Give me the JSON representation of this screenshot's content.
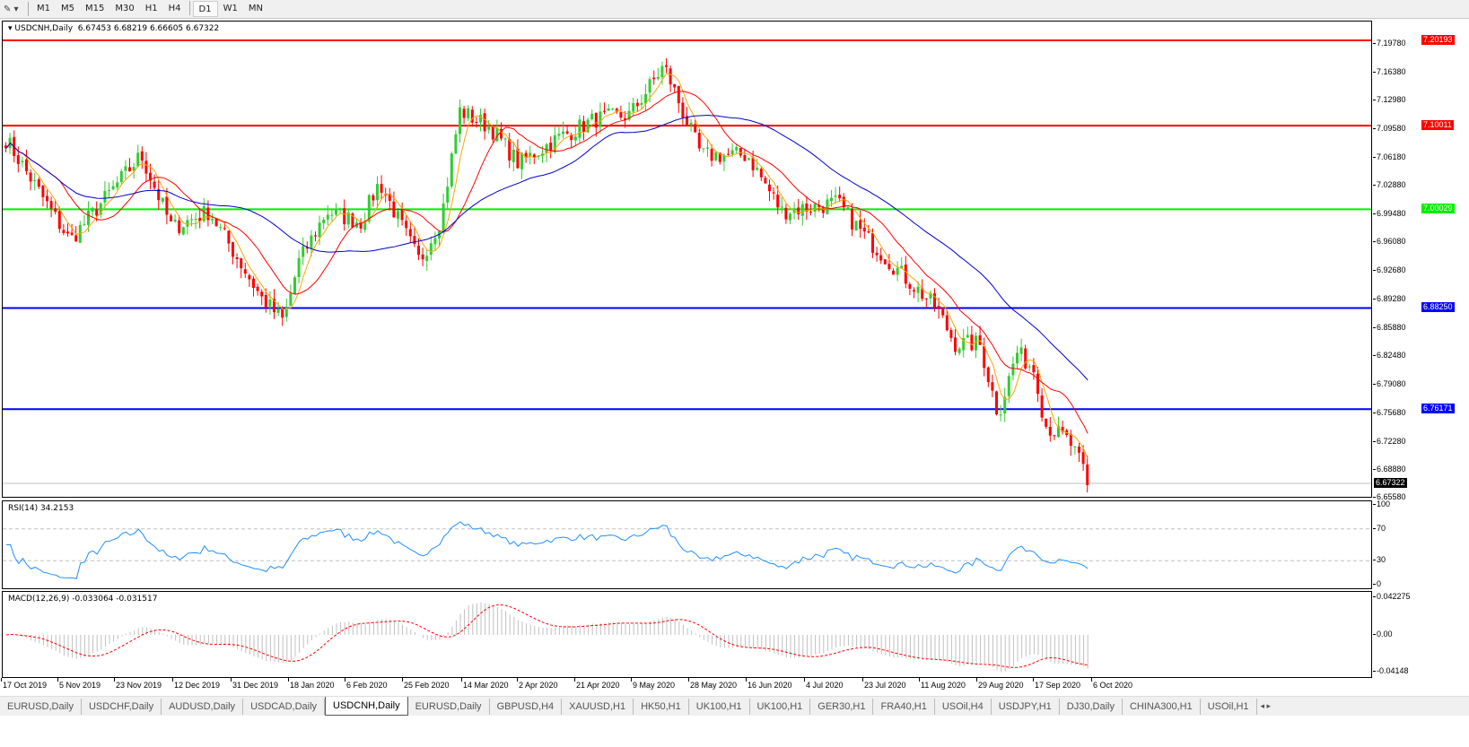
{
  "toolbar": {
    "timeframes": [
      "M1",
      "M5",
      "M15",
      "M30",
      "H1",
      "H4",
      "D1",
      "W1",
      "MN"
    ],
    "active": "D1"
  },
  "main": {
    "label": "USDCNH,Daily",
    "ohlc": "6.67453 6.68219 6.66605 6.67322",
    "current_price": "6.67322",
    "price_ticks": [
      "7.19780",
      "7.16380",
      "7.12980",
      "7.09580",
      "7.06180",
      "7.02880",
      "6.99480",
      "6.96080",
      "6.92680",
      "6.89280",
      "6.85880",
      "6.82480",
      "6.79080",
      "6.75680",
      "6.72280",
      "6.68880",
      "6.65580"
    ],
    "levels": [
      {
        "value": "7.20193",
        "color": "#ff0000"
      },
      {
        "value": "7.10011",
        "color": "#ff0000"
      },
      {
        "value": "7.00029",
        "color": "#00ee00"
      },
      {
        "value": "6.88250",
        "color": "#0000ff"
      },
      {
        "value": "6.76171",
        "color": "#0000ff"
      }
    ],
    "colors": {
      "bull": "#32cd32",
      "bear": "#ff0000",
      "ma_fast": "#ffa500",
      "ma_mid": "#ff0000",
      "ma_slow": "#0000cd"
    },
    "close_path": [
      [
        "17 Oct 2019",
        7.088
      ],
      [
        "7 Nov 2019",
        6.965
      ],
      [
        "30 Nov 2019",
        7.067
      ],
      [
        "10 Dec 2019",
        6.98
      ],
      [
        "22 Dec 2019",
        7.0
      ],
      [
        "8 Jan 2020",
        6.896
      ],
      [
        "15 Jan 2020",
        6.869
      ],
      [
        "20 Jan 2020",
        6.94
      ],
      [
        "29 Jan 2020",
        7.0
      ],
      [
        "9 Feb 2020",
        6.987
      ],
      [
        "15 Feb 2020",
        7.035
      ],
      [
        "28 Feb 2020",
        6.94
      ],
      [
        "6 Mar 2020",
        6.992
      ],
      [
        "12 Mar 2020",
        7.12
      ],
      [
        "22 Mar 2020",
        7.1
      ],
      [
        "31 Mar 2020",
        7.057
      ],
      [
        "13 Apr 2020",
        7.088
      ],
      [
        "25 Apr 2020",
        7.11
      ],
      [
        "6 May 2020",
        7.115
      ],
      [
        "17 May 2020",
        7.174
      ],
      [
        "24 May 2020",
        7.11
      ],
      [
        "29 May 2020",
        7.067
      ],
      [
        "13 Jun 2020",
        7.067
      ],
      [
        "24 Jun 2020",
        7.0
      ],
      [
        "12 Jul 2020",
        7.01
      ],
      [
        "21 Jul 2020",
        6.97
      ],
      [
        "1 Aug 2020",
        6.928
      ],
      [
        "13 Aug 2020",
        6.885
      ],
      [
        "19 Aug 2020",
        6.842
      ],
      [
        "27 Aug 2020",
        6.842
      ],
      [
        "2 Sep 2020",
        6.757
      ],
      [
        "8 Sep 2020",
        6.832
      ],
      [
        "14 Sep 2020",
        6.81
      ],
      [
        "17 Sep 2020",
        6.746
      ],
      [
        "25 Sep 2020",
        6.725
      ],
      [
        "2 Oct 2020",
        6.673
      ]
    ]
  },
  "rsi": {
    "label": "RSI(14) 34.2153",
    "ticks": [
      "100",
      "70",
      "30",
      "0"
    ],
    "color": "#1e90ff"
  },
  "macd": {
    "label": "MACD(12,26,9) -0.033064 -0.031517",
    "ticks": [
      "0.042275",
      "0.00",
      "-0.04148"
    ],
    "hist_color": "#c0c0c0",
    "signal_color": "#ff0000"
  },
  "dates": [
    "17 Oct 2019",
    "5 Nov 2019",
    "23 Nov 2019",
    "12 Dec 2019",
    "31 Dec 2019",
    "18 Jan 2020",
    "6 Feb 2020",
    "25 Feb 2020",
    "14 Mar 2020",
    "2 Apr 2020",
    "21 Apr 2020",
    "9 May 2020",
    "28 May 2020",
    "16 Jun 2020",
    "4 Jul 2020",
    "23 Jul 2020",
    "11 Aug 2020",
    "29 Aug 2020",
    "17 Sep 2020",
    "6 Oct 2020"
  ],
  "tabs": [
    "EURUSD,Daily",
    "USDCHF,Daily",
    "AUDUSD,Daily",
    "USDCAD,Daily",
    "USDCNH,Daily",
    "EURUSD,Daily",
    "GBPUSD,H4",
    "XAUUSD,H1",
    "HK50,H1",
    "UK100,H1",
    "UK100,H1",
    "GER30,H1",
    "FRA40,H1",
    "USOil,H4",
    "USDJPY,H1",
    "DJ30,Daily",
    "CHINA300,H1",
    "USOil,H1"
  ],
  "active_tab": "USDCNH,Daily"
}
